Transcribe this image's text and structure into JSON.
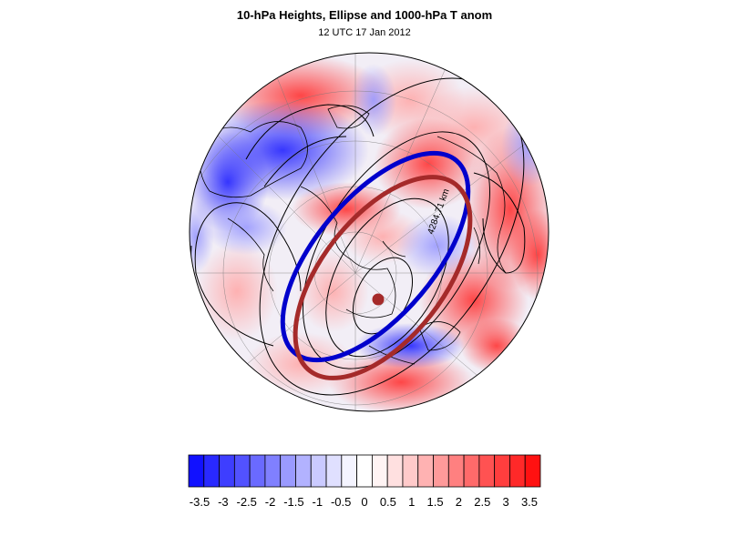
{
  "header": {
    "title": "10-hPa Heights, Ellipse and 1000-hPa T anom",
    "subtitle": "12 UTC 17 Jan 2012"
  },
  "map": {
    "projection": "north-polar-stereographic",
    "ellipse_label": "4284.71 km",
    "colors": {
      "ellipse_blue": "#0000cc",
      "ellipse_red": "#a52a2a",
      "contour": "#000000"
    }
  },
  "colorbar": {
    "tick_labels": [
      "-3.5",
      "-3",
      "-2.5",
      "-2",
      "-1.5",
      "-1",
      "-0.5",
      "0",
      "0.5",
      "1",
      "1.5",
      "2",
      "2.5",
      "3",
      "3.5"
    ],
    "colors": [
      "#1111ff",
      "#2929ff",
      "#3e3eff",
      "#5252ff",
      "#6a6aff",
      "#8080ff",
      "#9a9aff",
      "#b2b2ff",
      "#cacaff",
      "#e0e0ff",
      "#f4f4ff",
      "#ffffff",
      "#fff4f4",
      "#ffe0e0",
      "#ffcaca",
      "#ffb2b2",
      "#ff9a9a",
      "#ff8080",
      "#ff6a6a",
      "#ff5252",
      "#ff3e3e",
      "#ff2929",
      "#ff1111"
    ]
  }
}
